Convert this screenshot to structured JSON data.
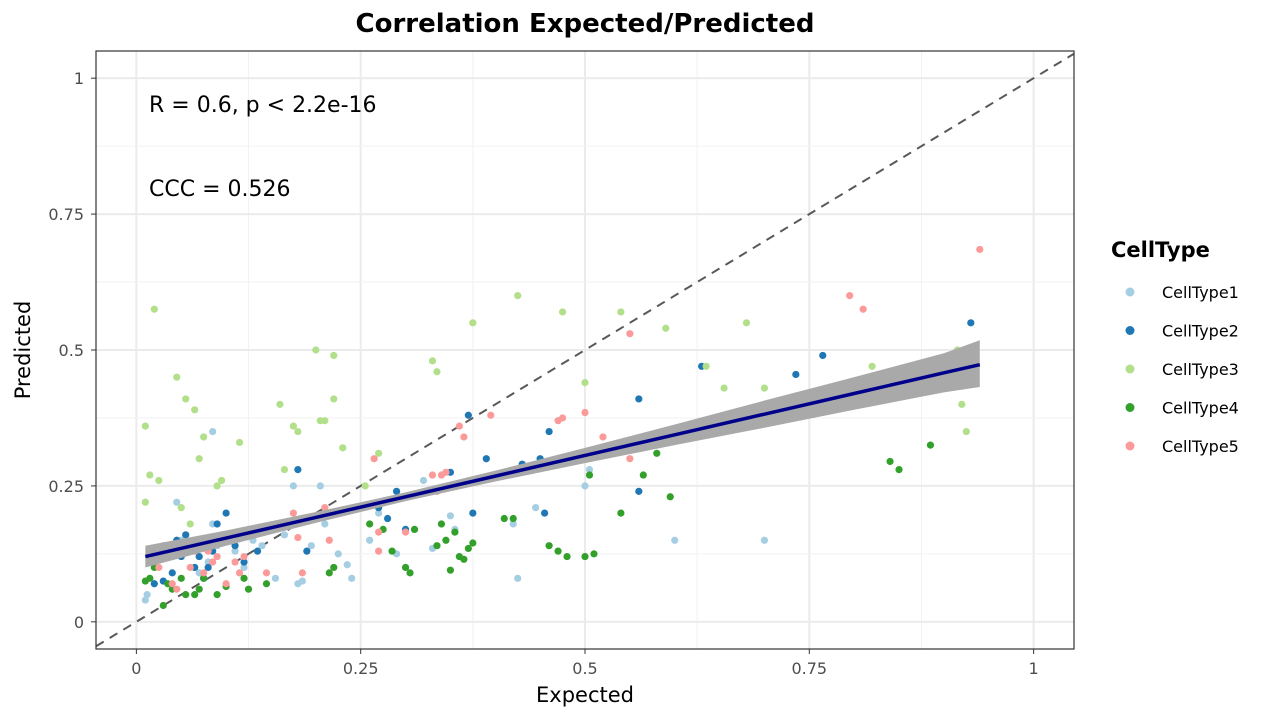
{
  "chart_data": {
    "type": "scatter",
    "title": "Correlation Expected/Predicted",
    "xlabel": "Expected",
    "ylabel": "Predicted",
    "xlim": [
      -0.045,
      1.045
    ],
    "ylim": [
      -0.05,
      1.05
    ],
    "x_ticks": [
      0,
      0.25,
      0.5,
      0.75,
      1
    ],
    "x_tick_labels": [
      "0",
      "0.25",
      "0.5",
      "0.75",
      "1"
    ],
    "y_ticks": [
      0,
      0.25,
      0.5,
      0.75,
      1
    ],
    "y_tick_labels": [
      "0",
      "0.25",
      "0.5",
      "0.75",
      "1"
    ],
    "grid": true,
    "legend": {
      "title": "CellType",
      "placement": "right"
    },
    "annotations": [
      "R = 0.6, p < 2.2e-16",
      "CCC = 0.526"
    ],
    "identity_line": {
      "style": "dashed",
      "color": "#595959",
      "slope": 1,
      "intercept": 0
    },
    "regression": {
      "color": "#00008B",
      "ribbon_color": "#A9A9A9",
      "x": [
        0.01,
        0.1,
        0.2,
        0.3,
        0.4,
        0.5,
        0.6,
        0.7,
        0.8,
        0.9,
        0.94
      ],
      "y": [
        0.12,
        0.154,
        0.192,
        0.23,
        0.268,
        0.306,
        0.344,
        0.382,
        0.42,
        0.458,
        0.473
      ],
      "lower": [
        0.1,
        0.14,
        0.182,
        0.222,
        0.258,
        0.292,
        0.325,
        0.357,
        0.39,
        0.422,
        0.432
      ],
      "upper": [
        0.14,
        0.168,
        0.202,
        0.238,
        0.278,
        0.32,
        0.363,
        0.407,
        0.45,
        0.494,
        0.518
      ]
    },
    "series": [
      {
        "name": "CellType1",
        "color": "#A6CEE3",
        "points": [
          [
            0.01,
            0.04
          ],
          [
            0.012,
            0.05
          ],
          [
            0.03,
            0.14
          ],
          [
            0.04,
            0.12
          ],
          [
            0.045,
            0.22
          ],
          [
            0.05,
            0.15
          ],
          [
            0.06,
            0.13
          ],
          [
            0.065,
            0.1
          ],
          [
            0.07,
            0.09
          ],
          [
            0.08,
            0.11
          ],
          [
            0.085,
            0.18
          ],
          [
            0.09,
            0.14
          ],
          [
            0.1,
            0.15
          ],
          [
            0.11,
            0.13
          ],
          [
            0.12,
            0.1
          ],
          [
            0.13,
            0.15
          ],
          [
            0.14,
            0.14
          ],
          [
            0.155,
            0.08
          ],
          [
            0.165,
            0.16
          ],
          [
            0.175,
            0.25
          ],
          [
            0.18,
            0.07
          ],
          [
            0.185,
            0.075
          ],
          [
            0.195,
            0.14
          ],
          [
            0.205,
            0.25
          ],
          [
            0.21,
            0.18
          ],
          [
            0.225,
            0.125
          ],
          [
            0.235,
            0.105
          ],
          [
            0.24,
            0.08
          ],
          [
            0.26,
            0.15
          ],
          [
            0.27,
            0.2
          ],
          [
            0.29,
            0.125
          ],
          [
            0.31,
            0.17
          ],
          [
            0.32,
            0.26
          ],
          [
            0.33,
            0.135
          ],
          [
            0.35,
            0.195
          ],
          [
            0.355,
            0.17
          ],
          [
            0.42,
            0.18
          ],
          [
            0.425,
            0.08
          ],
          [
            0.445,
            0.21
          ],
          [
            0.5,
            0.25
          ],
          [
            0.505,
            0.28
          ],
          [
            0.6,
            0.15
          ],
          [
            0.7,
            0.15
          ],
          [
            0.085,
            0.35
          ]
        ]
      },
      {
        "name": "CellType2",
        "color": "#1F78B4",
        "points": [
          [
            0.02,
            0.07
          ],
          [
            0.03,
            0.075
          ],
          [
            0.04,
            0.09
          ],
          [
            0.045,
            0.15
          ],
          [
            0.05,
            0.12
          ],
          [
            0.055,
            0.16
          ],
          [
            0.06,
            0.14
          ],
          [
            0.065,
            0.1
          ],
          [
            0.07,
            0.12
          ],
          [
            0.075,
            0.08
          ],
          [
            0.08,
            0.1
          ],
          [
            0.085,
            0.13
          ],
          [
            0.09,
            0.18
          ],
          [
            0.1,
            0.2
          ],
          [
            0.11,
            0.14
          ],
          [
            0.12,
            0.11
          ],
          [
            0.135,
            0.13
          ],
          [
            0.18,
            0.28
          ],
          [
            0.19,
            0.13
          ],
          [
            0.27,
            0.21
          ],
          [
            0.28,
            0.19
          ],
          [
            0.29,
            0.24
          ],
          [
            0.3,
            0.17
          ],
          [
            0.35,
            0.275
          ],
          [
            0.37,
            0.38
          ],
          [
            0.375,
            0.2
          ],
          [
            0.39,
            0.3
          ],
          [
            0.43,
            0.29
          ],
          [
            0.45,
            0.3
          ],
          [
            0.455,
            0.2
          ],
          [
            0.46,
            0.35
          ],
          [
            0.56,
            0.41
          ],
          [
            0.56,
            0.24
          ],
          [
            0.63,
            0.47
          ],
          [
            0.735,
            0.455
          ],
          [
            0.765,
            0.49
          ],
          [
            0.93,
            0.55
          ]
        ]
      },
      {
        "name": "CellType3",
        "color": "#B2DF8A",
        "points": [
          [
            0.01,
            0.36
          ],
          [
            0.01,
            0.22
          ],
          [
            0.015,
            0.27
          ],
          [
            0.02,
            0.575
          ],
          [
            0.025,
            0.26
          ],
          [
            0.045,
            0.45
          ],
          [
            0.05,
            0.21
          ],
          [
            0.055,
            0.41
          ],
          [
            0.06,
            0.18
          ],
          [
            0.065,
            0.39
          ],
          [
            0.07,
            0.3
          ],
          [
            0.075,
            0.34
          ],
          [
            0.09,
            0.25
          ],
          [
            0.095,
            0.26
          ],
          [
            0.115,
            0.33
          ],
          [
            0.16,
            0.4
          ],
          [
            0.165,
            0.28
          ],
          [
            0.175,
            0.36
          ],
          [
            0.18,
            0.35
          ],
          [
            0.2,
            0.5
          ],
          [
            0.205,
            0.37
          ],
          [
            0.21,
            0.37
          ],
          [
            0.22,
            0.41
          ],
          [
            0.22,
            0.49
          ],
          [
            0.23,
            0.32
          ],
          [
            0.255,
            0.25
          ],
          [
            0.27,
            0.31
          ],
          [
            0.33,
            0.48
          ],
          [
            0.335,
            0.46
          ],
          [
            0.375,
            0.55
          ],
          [
            0.425,
            0.6
          ],
          [
            0.475,
            0.57
          ],
          [
            0.5,
            0.44
          ],
          [
            0.54,
            0.57
          ],
          [
            0.59,
            0.54
          ],
          [
            0.635,
            0.47
          ],
          [
            0.655,
            0.43
          ],
          [
            0.68,
            0.55
          ],
          [
            0.7,
            0.43
          ],
          [
            0.82,
            0.47
          ],
          [
            0.915,
            0.5
          ],
          [
            0.92,
            0.4
          ],
          [
            0.925,
            0.35
          ]
        ]
      },
      {
        "name": "CellType4",
        "color": "#33A02C",
        "points": [
          [
            0.01,
            0.075
          ],
          [
            0.015,
            0.08
          ],
          [
            0.02,
            0.1
          ],
          [
            0.03,
            0.03
          ],
          [
            0.035,
            0.07
          ],
          [
            0.04,
            0.06
          ],
          [
            0.05,
            0.08
          ],
          [
            0.055,
            0.05
          ],
          [
            0.065,
            0.05
          ],
          [
            0.07,
            0.06
          ],
          [
            0.075,
            0.08
          ],
          [
            0.09,
            0.05
          ],
          [
            0.1,
            0.065
          ],
          [
            0.12,
            0.08
          ],
          [
            0.125,
            0.06
          ],
          [
            0.145,
            0.07
          ],
          [
            0.215,
            0.09
          ],
          [
            0.22,
            0.1
          ],
          [
            0.26,
            0.18
          ],
          [
            0.275,
            0.17
          ],
          [
            0.285,
            0.13
          ],
          [
            0.3,
            0.1
          ],
          [
            0.305,
            0.09
          ],
          [
            0.31,
            0.17
          ],
          [
            0.335,
            0.14
          ],
          [
            0.34,
            0.18
          ],
          [
            0.345,
            0.15
          ],
          [
            0.35,
            0.095
          ],
          [
            0.355,
            0.165
          ],
          [
            0.36,
            0.12
          ],
          [
            0.365,
            0.115
          ],
          [
            0.37,
            0.135
          ],
          [
            0.375,
            0.145
          ],
          [
            0.41,
            0.19
          ],
          [
            0.42,
            0.19
          ],
          [
            0.46,
            0.14
          ],
          [
            0.47,
            0.13
          ],
          [
            0.48,
            0.12
          ],
          [
            0.5,
            0.12
          ],
          [
            0.505,
            0.27
          ],
          [
            0.51,
            0.125
          ],
          [
            0.54,
            0.2
          ],
          [
            0.565,
            0.27
          ],
          [
            0.58,
            0.31
          ],
          [
            0.595,
            0.23
          ],
          [
            0.84,
            0.295
          ],
          [
            0.85,
            0.28
          ],
          [
            0.885,
            0.325
          ]
        ]
      },
      {
        "name": "CellType5",
        "color": "#FB9A99",
        "points": [
          [
            0.02,
            0.12
          ],
          [
            0.025,
            0.1
          ],
          [
            0.04,
            0.07
          ],
          [
            0.045,
            0.06
          ],
          [
            0.06,
            0.1
          ],
          [
            0.065,
            0.13
          ],
          [
            0.075,
            0.09
          ],
          [
            0.08,
            0.13
          ],
          [
            0.085,
            0.11
          ],
          [
            0.09,
            0.12
          ],
          [
            0.1,
            0.07
          ],
          [
            0.11,
            0.11
          ],
          [
            0.115,
            0.09
          ],
          [
            0.12,
            0.12
          ],
          [
            0.145,
            0.09
          ],
          [
            0.175,
            0.2
          ],
          [
            0.18,
            0.155
          ],
          [
            0.185,
            0.09
          ],
          [
            0.21,
            0.21
          ],
          [
            0.215,
            0.15
          ],
          [
            0.265,
            0.3
          ],
          [
            0.27,
            0.13
          ],
          [
            0.27,
            0.165
          ],
          [
            0.3,
            0.165
          ],
          [
            0.33,
            0.27
          ],
          [
            0.335,
            0.24
          ],
          [
            0.34,
            0.27
          ],
          [
            0.345,
            0.275
          ],
          [
            0.36,
            0.36
          ],
          [
            0.365,
            0.34
          ],
          [
            0.395,
            0.38
          ],
          [
            0.47,
            0.37
          ],
          [
            0.475,
            0.375
          ],
          [
            0.5,
            0.385
          ],
          [
            0.52,
            0.34
          ],
          [
            0.55,
            0.3
          ],
          [
            0.55,
            0.53
          ],
          [
            0.795,
            0.6
          ],
          [
            0.81,
            0.575
          ],
          [
            0.94,
            0.685
          ]
        ]
      }
    ]
  }
}
